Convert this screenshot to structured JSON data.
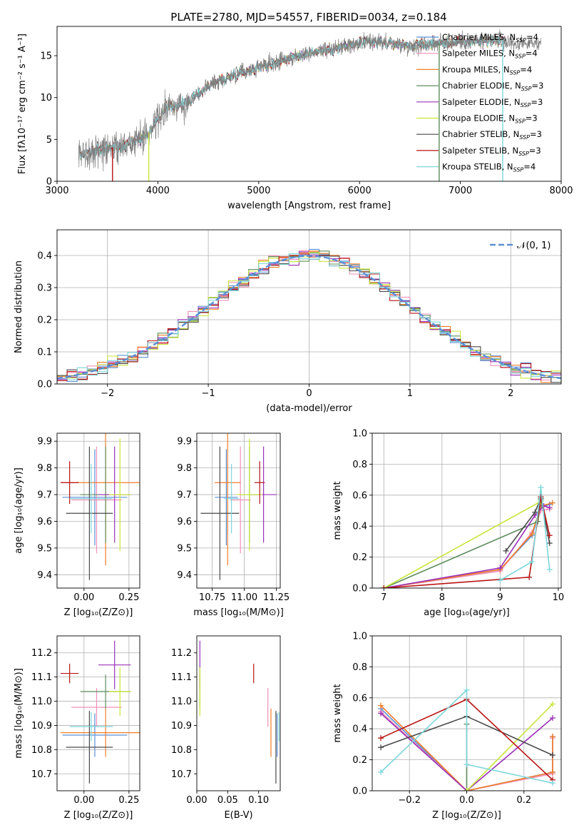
{
  "figure": {
    "title": "PLATE=2780, MJD=54557, FIBERID=0034, z=0.184"
  },
  "models": [
    {
      "name": "Chabrier MILES",
      "nssp": "4",
      "color": "#5a8fd6"
    },
    {
      "name": "Salpeter MILES",
      "nssp": "4",
      "color": "#f08fb8"
    },
    {
      "name": "Kroupa MILES",
      "nssp": "4",
      "color": "#f07d28"
    },
    {
      "name": "Chabrier ELODIE",
      "nssp": "3",
      "color": "#5b8c5a"
    },
    {
      "name": "Salpeter ELODIE",
      "nssp": "3",
      "color": "#9b30b8"
    },
    {
      "name": "Kroupa ELODIE",
      "nssp": "3",
      "color": "#c8e63c"
    },
    {
      "name": "Chabrier STELIB",
      "nssp": "3",
      "color": "#4a4a4a"
    },
    {
      "name": "Salpeter STELIB",
      "nssp": "3",
      "color": "#b81414"
    },
    {
      "name": "Kroupa STELIB",
      "nssp": "4",
      "color": "#7dd6dc"
    }
  ],
  "chart_data": [
    {
      "id": "spectrum",
      "type": "line",
      "xlabel": "wavelength [Angstrom, rest frame]",
      "ylabel": "Flux [fλ10⁻¹⁷ erg cm⁻² s⁻¹ A⁻¹]",
      "xlim": [
        3000,
        8000
      ],
      "ylim": [
        0,
        18.5
      ],
      "xticks": [
        3000,
        4000,
        5000,
        6000,
        7000,
        8000
      ],
      "yticks": [
        0,
        5,
        10,
        15
      ],
      "data_color": "#808080",
      "legend": "top-right",
      "legend_label_prefix": "N",
      "legend_label_sub": "SSP",
      "continuum_x": [
        3215,
        3300,
        3500,
        3700,
        3900,
        4000,
        4100,
        4300,
        4500,
        4800,
        5000,
        5200,
        5500,
        5800,
        6000,
        6200,
        6500,
        6800,
        7000,
        7400
      ],
      "continuum_y": [
        3.0,
        3.5,
        3.9,
        4.5,
        5.6,
        7.5,
        8.7,
        9.5,
        11.5,
        12.9,
        13.6,
        14.3,
        15.4,
        15.9,
        16.5,
        16.6,
        16.2,
        16.5,
        16.6,
        16.9
      ]
    },
    {
      "id": "residuals",
      "type": "line",
      "xlabel": "(data-model)/error",
      "ylabel": "Normed distribution",
      "xlim": [
        -2.5,
        2.5
      ],
      "ylim": [
        0,
        0.48
      ],
      "xticks": [
        -2,
        -1,
        0,
        1,
        2
      ],
      "yticks": [
        0.0,
        0.1,
        0.2,
        0.3,
        0.4
      ],
      "grid": true,
      "legend": "top-right",
      "gaussian_label": "𝒩(0, 1)",
      "gaussian_color": "#5b8fd6",
      "bin_width": 0.1
    },
    {
      "id": "age-vs-Z",
      "type": "scatter",
      "xlabel": "Z [log₁₀(Z/Z⊙)]",
      "ylabel": "age  [log₁₀(age/yr)]",
      "xlim": [
        -0.15,
        0.31
      ],
      "ylim": [
        9.35,
        9.93
      ],
      "xticks": [
        0.0,
        0.25
      ],
      "yticks": [
        9.4,
        9.5,
        9.6,
        9.7,
        9.8,
        9.9
      ],
      "grid": true,
      "points": [
        {
          "x": 0.06,
          "xerr": 0.18,
          "y": 9.69,
          "yerr": 0.18
        },
        {
          "x": 0.07,
          "xerr": 0.14,
          "y": 9.68,
          "yerr": 0.2
        },
        {
          "x": 0.12,
          "xerr": 0.25,
          "y": 9.745,
          "yerr": 0.31
        },
        {
          "x": 0.12,
          "xerr": 0.14,
          "y": 9.7,
          "yerr": 0.18
        },
        {
          "x": 0.17,
          "xerr": 0.09,
          "y": 9.7,
          "yerr": 0.18
        },
        {
          "x": 0.2,
          "xerr": 0.06,
          "y": 9.7,
          "yerr": 0.21
        },
        {
          "x": 0.03,
          "xerr": 0.13,
          "y": 9.63,
          "yerr": 0.25
        },
        {
          "x": -0.08,
          "xerr": 0.05,
          "y": 9.745,
          "yerr": 0.08
        },
        {
          "x": 0.04,
          "xerr": 0.12,
          "y": 9.685,
          "yerr": 0.13
        }
      ]
    },
    {
      "id": "age-vs-mass",
      "type": "scatter",
      "xlabel": "mass [log₁₀(M/M⊙)]",
      "ylabel": "",
      "xlim": [
        10.63,
        11.28
      ],
      "ylim": [
        9.35,
        9.93
      ],
      "xticks": [
        10.75,
        11.0,
        11.25
      ],
      "yticks": [
        9.4,
        9.5,
        9.6,
        9.7,
        9.8,
        9.9
      ],
      "grid": true,
      "points": [
        {
          "x": 10.86,
          "xerr": 0.09,
          "y": 9.69,
          "yerr": 0.18
        },
        {
          "x": 10.97,
          "xerr": 0.08,
          "y": 9.68,
          "yerr": 0.2
        },
        {
          "x": 10.87,
          "xerr": 0.1,
          "y": 9.745,
          "yerr": 0.31
        },
        {
          "x": 11.04,
          "xerr": 0.07,
          "y": 9.7,
          "yerr": 0.18
        },
        {
          "x": 11.15,
          "xerr": 0.1,
          "y": 9.7,
          "yerr": 0.18
        },
        {
          "x": 11.04,
          "xerr": 0.1,
          "y": 9.7,
          "yerr": 0.21
        },
        {
          "x": 10.81,
          "xerr": 0.15,
          "y": 9.63,
          "yerr": 0.25
        },
        {
          "x": 11.12,
          "xerr": 0.04,
          "y": 9.745,
          "yerr": 0.08
        },
        {
          "x": 10.9,
          "xerr": 0.06,
          "y": 9.685,
          "yerr": 0.13
        }
      ]
    },
    {
      "id": "weight-vs-age",
      "type": "line",
      "xlabel": "age  [log₁₀(age/yr)]",
      "ylabel": "mass weight",
      "xlim": [
        6.8,
        10.05
      ],
      "ylim": [
        0,
        1.0
      ],
      "xticks": [
        7,
        8,
        9,
        10
      ],
      "yticks": [
        0.0,
        0.2,
        0.4,
        0.6,
        0.8,
        1.0
      ],
      "grid": true,
      "series": [
        {
          "x": [
            7.0,
            9.0,
            9.55,
            9.7,
            9.85
          ],
          "y": [
            0.0,
            0.12,
            0.34,
            0.52,
            0.54
          ]
        },
        {
          "x": [
            7.0,
            9.0,
            9.55,
            9.7,
            9.85
          ],
          "y": [
            0.0,
            0.11,
            0.36,
            0.5,
            0.51
          ]
        },
        {
          "x": [
            7.0,
            9.0,
            9.55,
            9.7,
            9.9
          ],
          "y": [
            0.0,
            0.12,
            0.35,
            0.53,
            0.55
          ]
        },
        {
          "x": [
            7.0,
            9.65,
            9.7
          ],
          "y": [
            0.0,
            0.43,
            0.57
          ]
        },
        {
          "x": [
            7.0,
            9.0,
            9.6,
            9.75,
            9.85
          ],
          "y": [
            0.0,
            0.13,
            0.47,
            0.53,
            0.52
          ]
        },
        {
          "x": [
            7.0,
            9.7
          ],
          "y": [
            0.0,
            0.56
          ]
        },
        {
          "x": [
            9.1,
            9.6,
            9.7,
            9.85
          ],
          "y": [
            0.24,
            0.49,
            0.58,
            0.29
          ]
        },
        {
          "x": [
            7.0,
            9.5,
            9.7,
            9.85
          ],
          "y": [
            0.0,
            0.07,
            0.59,
            0.34
          ]
        },
        {
          "x": [
            9.0,
            9.55,
            9.7,
            9.85
          ],
          "y": [
            0.05,
            0.17,
            0.65,
            0.12
          ]
        }
      ]
    },
    {
      "id": "mass-vs-Z",
      "type": "scatter",
      "xlabel": "Z [log₁₀(Z/Z⊙)]",
      "ylabel": "mass [log₁₀(M/M⊙)]",
      "xlim": [
        -0.15,
        0.31
      ],
      "ylim": [
        10.63,
        11.27
      ],
      "xticks": [
        0.0,
        0.25
      ],
      "yticks": [
        10.7,
        10.8,
        10.9,
        11.0,
        11.1,
        11.2
      ],
      "grid": true,
      "points": [
        {
          "x": 0.06,
          "xerr": 0.18,
          "y": 10.86,
          "yerr": 0.09
        },
        {
          "x": 0.07,
          "xerr": 0.14,
          "y": 10.975,
          "yerr": 0.08
        },
        {
          "x": 0.12,
          "xerr": 0.25,
          "y": 10.87,
          "yerr": 0.1
        },
        {
          "x": 0.12,
          "xerr": 0.14,
          "y": 11.04,
          "yerr": 0.07
        },
        {
          "x": 0.17,
          "xerr": 0.09,
          "y": 11.15,
          "yerr": 0.1
        },
        {
          "x": 0.2,
          "xerr": 0.06,
          "y": 11.04,
          "yerr": 0.1
        },
        {
          "x": 0.03,
          "xerr": 0.13,
          "y": 10.81,
          "yerr": 0.15
        },
        {
          "x": -0.08,
          "xerr": 0.05,
          "y": 11.115,
          "yerr": 0.04
        },
        {
          "x": 0.04,
          "xerr": 0.12,
          "y": 10.895,
          "yerr": 0.06
        }
      ]
    },
    {
      "id": "mass-vs-ebv",
      "type": "scatter",
      "xlabel": "E(B-V)",
      "ylabel": "",
      "xlim": [
        0.0,
        0.135
      ],
      "ylim": [
        10.63,
        11.27
      ],
      "xticks": [
        0.0,
        0.05,
        0.1
      ],
      "yticks": [
        10.7,
        10.8,
        10.9,
        11.0,
        11.1,
        11.2
      ],
      "grid": false,
      "points": [
        {
          "x": 0.13,
          "xerr": 0.0,
          "y": 10.86,
          "yerr": 0.09
        },
        {
          "x": 0.115,
          "xerr": 0.0,
          "y": 10.975,
          "yerr": 0.08
        },
        {
          "x": 0.12,
          "xerr": 0.0,
          "y": 10.87,
          "yerr": 0.1
        },
        {
          "x": 0.005,
          "xerr": 0.0,
          "y": 11.04,
          "yerr": 0.07
        },
        {
          "x": 0.005,
          "xerr": 0.0,
          "y": 11.15,
          "yerr": 0.1
        },
        {
          "x": 0.005,
          "xerr": 0.0,
          "y": 11.04,
          "yerr": 0.1
        },
        {
          "x": 0.128,
          "xerr": 0.0,
          "y": 10.81,
          "yerr": 0.15
        },
        {
          "x": 0.092,
          "xerr": 0.0,
          "y": 11.115,
          "yerr": 0.04
        },
        {
          "x": 0.133,
          "xerr": 0.0,
          "y": 10.895,
          "yerr": 0.06
        }
      ]
    },
    {
      "id": "weight-vs-Z",
      "type": "line",
      "xlabel": "Z [log₁₀(Z/Z⊙)]",
      "ylabel": "mass weight",
      "xlim": [
        -0.33,
        0.33
      ],
      "ylim": [
        0,
        1.0
      ],
      "xticks": [
        -0.2,
        0.0,
        0.2
      ],
      "yticks": [
        0.0,
        0.2,
        0.4,
        0.6,
        0.8,
        1.0
      ],
      "grid": true,
      "series": [
        {
          "x": [
            -0.3,
            0.0,
            0.3,
            0.3
          ],
          "y": [
            0.53,
            0.0,
            0.12,
            0.35
          ]
        },
        {
          "x": [
            -0.3,
            0.0,
            0.3,
            0.3
          ],
          "y": [
            0.51,
            0.0,
            0.11,
            0.34
          ]
        },
        {
          "x": [
            -0.3,
            0.0,
            0.3,
            0.3
          ],
          "y": [
            0.55,
            0.0,
            0.12,
            0.35
          ]
        },
        {
          "x": [
            0.0,
            0.0
          ],
          "y": [
            0.0,
            0.43
          ]
        },
        {
          "x": [
            -0.3,
            0.0,
            0.3
          ],
          "y": [
            0.5,
            0.0,
            0.47
          ]
        },
        {
          "x": [
            0.0,
            0.0,
            0.3
          ],
          "y": [
            0.0,
            0.0,
            0.56
          ]
        },
        {
          "x": [
            -0.3,
            0.0,
            0.3
          ],
          "y": [
            0.28,
            0.48,
            0.23
          ]
        },
        {
          "x": [
            -0.3,
            0.0,
            0.3
          ],
          "y": [
            0.34,
            0.59,
            0.07
          ]
        },
        {
          "x": [
            -0.3,
            0.0,
            0.0,
            0.3
          ],
          "y": [
            0.12,
            0.65,
            0.17,
            0.05
          ]
        }
      ]
    }
  ]
}
